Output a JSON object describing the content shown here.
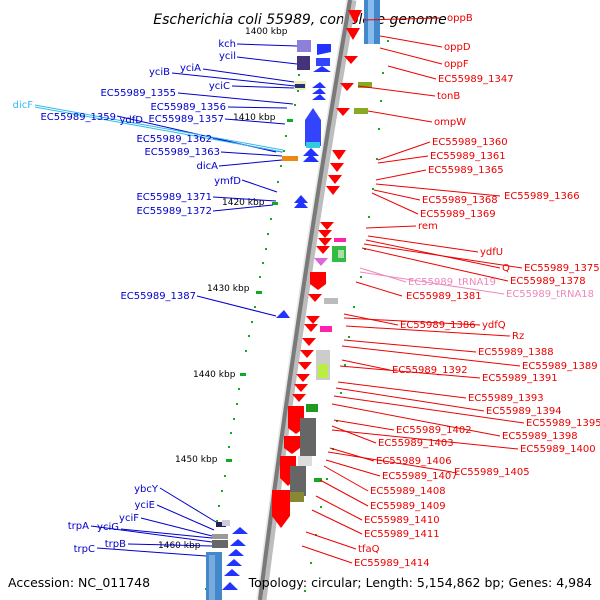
{
  "header": {
    "title": "Escherichia coli 55989, complete genome"
  },
  "footer": {
    "accession": "Accession: NC_011748",
    "topology": "Topology: circular; Length: 5,154,862 bp; Genes: 4,984"
  },
  "colors": {
    "left_label": "#0000cc",
    "right_label": "#ee0000",
    "trna_label": "#ee88bb",
    "cyan_label": "#33bbee",
    "backbone": "#888888",
    "tick": "#11aa22"
  },
  "scale_labels": [
    "1400 kbp",
    "1410 kbp",
    "1420 kbp",
    "1430 kbp",
    "1440 kbp",
    "1450 kbp",
    "1460 kbp"
  ],
  "left_genes": [
    "kch",
    "ycil",
    "yciA",
    "yciB",
    "yciC",
    "EC55989_1355",
    "EC55989_1356",
    "EC55989_1359",
    "EC55989_1357",
    "ydfD",
    "EC55989_1362",
    "EC55989_1363",
    "dicA",
    "ymfD",
    "EC55989_1371",
    "EC55989_1372",
    "EC55989_1387",
    "ybcY",
    "yciE",
    "yciF",
    "trpA",
    "yciG",
    "trpB",
    "trpC"
  ],
  "right_genes": [
    "oppB",
    "oppD",
    "oppF",
    "EC55989_1347",
    "tonB",
    "ompW",
    "EC55989_1360",
    "EC55989_1361",
    "EC55989_1365",
    "EC55989_1366",
    "EC55989_1368",
    "EC55989_1369",
    "rem",
    "ydfU",
    "Q",
    "EC55989_1375",
    "EC55989_1378",
    "EC55989_1381",
    "EC55989_1386",
    "ydfQ",
    "Rz",
    "EC55989_1388",
    "EC55989_1389",
    "EC55989_1392",
    "EC55989_1391",
    "EC55989_1393",
    "EC55989_1394",
    "EC55989_1395",
    "EC55989_1398",
    "EC55989_1402",
    "EC55989_1403",
    "EC55989_1400",
    "EC55989_1406",
    "EC55989_1405",
    "EC55989_1407",
    "EC55989_1408",
    "EC55989_1409",
    "EC55989_1410",
    "EC55989_1411",
    "tfaQ",
    "EC55989_1414"
  ],
  "trna_genes": [
    "EC55989_tRNA19",
    "EC55989_tRNA18"
  ],
  "cyan_genes": [
    "dicF"
  ]
}
